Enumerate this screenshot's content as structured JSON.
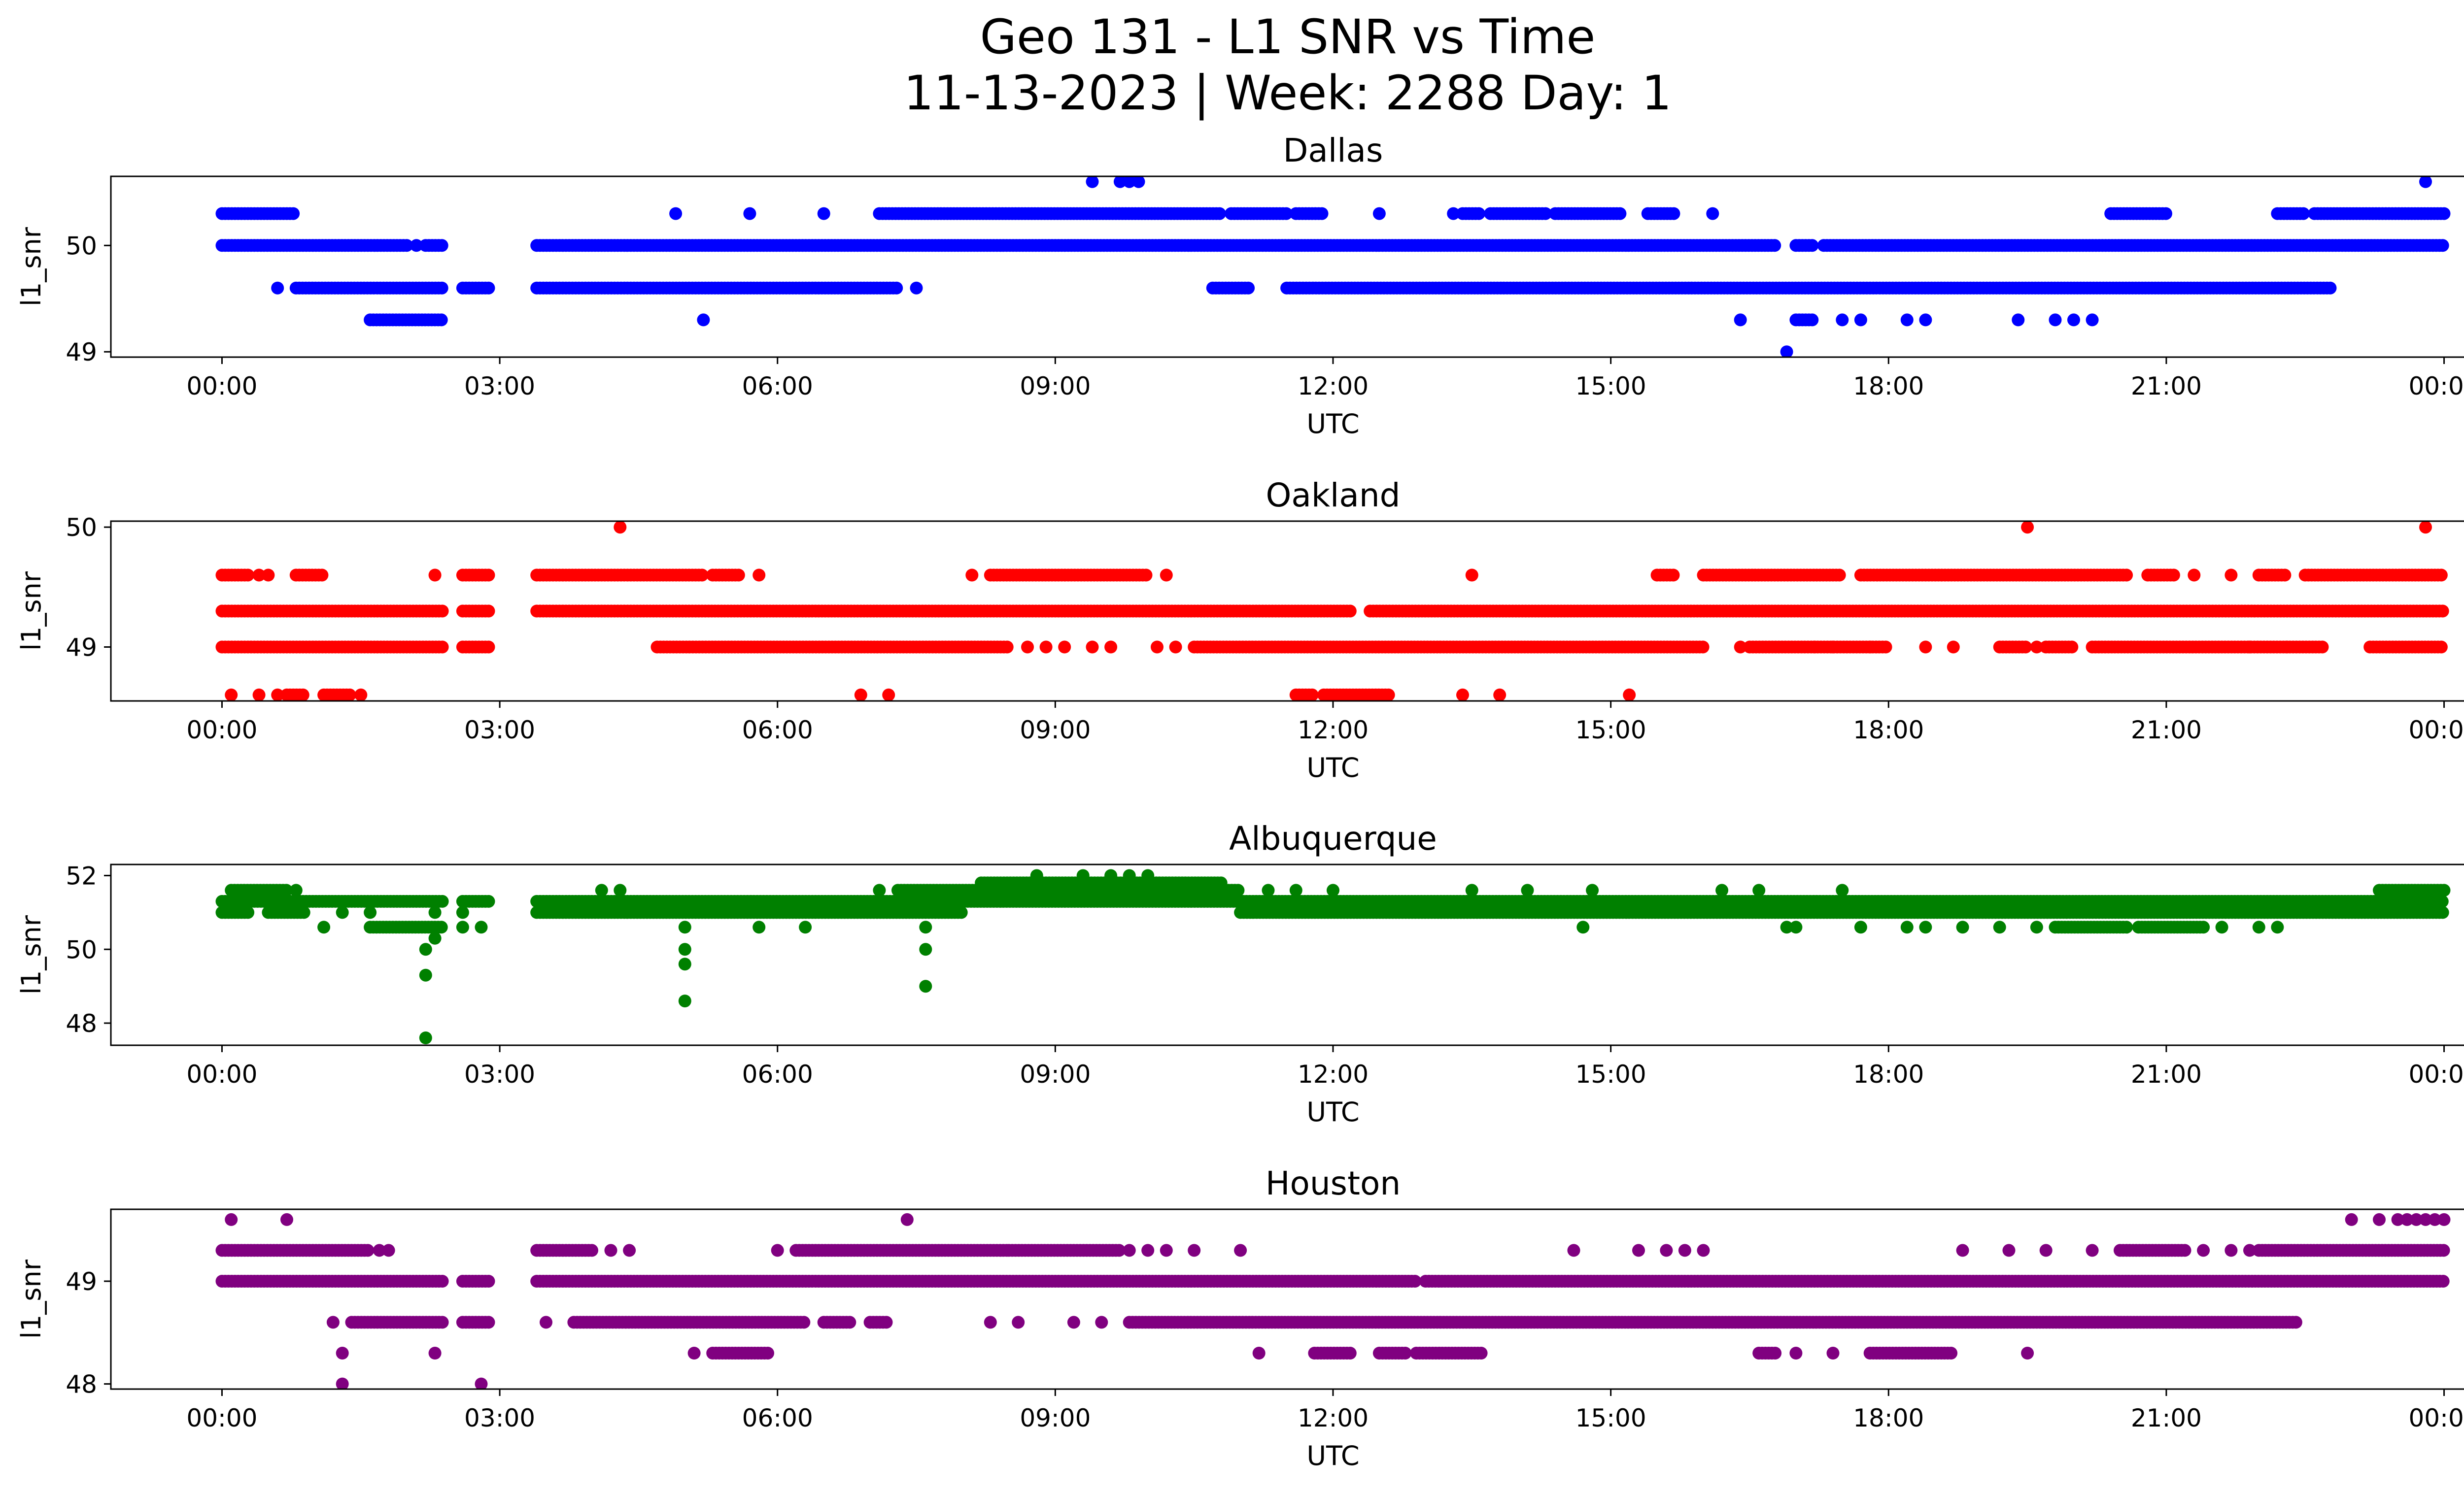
{
  "figure": {
    "title_line1": "Geo 131 - L1 SNR vs Time",
    "title_line2": "11-13-2023 | Week: 2288 Day: 1"
  },
  "chart_data": [
    {
      "type": "scatter",
      "title": "Dallas",
      "xlabel": "UTC",
      "ylabel": "l1_snr",
      "color": "#0000ff",
      "x_ticks": [
        "00:00",
        "03:00",
        "06:00",
        "09:00",
        "12:00",
        "15:00",
        "18:00",
        "21:00",
        "00:00"
      ],
      "x_range_hours": [
        -1.2,
        25.2
      ],
      "y_ticks": [
        49,
        50
      ],
      "ylim": [
        48.95,
        50.65
      ],
      "segments": [
        {
          "y": 50.3,
          "ranges": [
            [
              0,
              0.8
            ],
            [
              7.1,
              10.8
            ],
            [
              10.9,
              11.5
            ],
            [
              11.6,
              11.9
            ],
            [
              13.4,
              13.6
            ],
            [
              13.7,
              14.3
            ],
            [
              14.4,
              15.1
            ],
            [
              15.4,
              15.7
            ],
            [
              20.4,
              21.0
            ],
            [
              22.2,
              22.5
            ],
            [
              22.6,
              24.0
            ]
          ]
        },
        {
          "y": 50.3,
          "points": [
            4.9,
            5.7,
            6.5,
            12.5,
            13.3,
            16.1
          ]
        },
        {
          "y": 50.0,
          "ranges": [
            [
              0,
              2.0
            ],
            [
              2.2,
              2.4
            ],
            [
              3.4,
              16.8
            ],
            [
              17.0,
              17.2
            ],
            [
              17.3,
              24.0
            ]
          ]
        },
        {
          "y": 50.0,
          "points": [
            2.1
          ]
        },
        {
          "y": 49.6,
          "ranges": [
            [
              0.8,
              2.4
            ],
            [
              2.6,
              2.9
            ],
            [
              3.4,
              7.3
            ],
            [
              10.7,
              11.1
            ],
            [
              11.5,
              22.8
            ]
          ]
        },
        {
          "y": 49.6,
          "points": [
            0.6,
            7.5
          ]
        },
        {
          "y": 49.3,
          "ranges": [
            [
              1.6,
              2.4
            ],
            [
              17.0,
              17.2
            ]
          ]
        },
        {
          "y": 49.3,
          "points": [
            5.2,
            16.4,
            17.5,
            17.7,
            18.2,
            18.4,
            19.4,
            19.8,
            20.0,
            20.2
          ]
        },
        {
          "y": 49.0,
          "points": [
            16.9
          ]
        },
        {
          "y": 50.6,
          "points": [
            9.4,
            9.7,
            9.8,
            9.9,
            23.8
          ]
        }
      ]
    },
    {
      "type": "scatter",
      "title": "Oakland",
      "xlabel": "UTC",
      "ylabel": "l1_snr",
      "color": "#ff0000",
      "x_ticks": [
        "00:00",
        "03:00",
        "06:00",
        "09:00",
        "12:00",
        "15:00",
        "18:00",
        "21:00",
        "00:00"
      ],
      "x_range_hours": [
        -1.2,
        25.2
      ],
      "y_ticks": [
        49,
        50
      ],
      "ylim": [
        48.55,
        50.05
      ],
      "segments": [
        {
          "y": 49.6,
          "ranges": [
            [
              0,
              0.3
            ],
            [
              0.8,
              1.1
            ],
            [
              2.6,
              2.9
            ],
            [
              3.4,
              5.2
            ],
            [
              5.3,
              5.6
            ],
            [
              8.3,
              10.0
            ],
            [
              15.5,
              15.7
            ],
            [
              16.0,
              17.5
            ],
            [
              17.7,
              20.6
            ],
            [
              20.8,
              21.1
            ],
            [
              22.0,
              22.3
            ],
            [
              22.5,
              24.0
            ]
          ]
        },
        {
          "y": 49.6,
          "points": [
            0.4,
            0.5,
            2.3,
            5.8,
            8.1,
            10.2,
            13.5,
            21.3,
            21.7
          ]
        },
        {
          "y": 49.3,
          "ranges": [
            [
              0,
              2.4
            ],
            [
              2.6,
              2.9
            ],
            [
              3.4,
              12.2
            ],
            [
              12.4,
              24.0
            ]
          ]
        },
        {
          "y": 49.0,
          "ranges": [
            [
              0,
              2.4
            ],
            [
              2.6,
              2.9
            ],
            [
              4.7,
              8.5
            ],
            [
              10.5,
              16.0
            ],
            [
              16.5,
              18.0
            ],
            [
              19.2,
              19.5
            ],
            [
              19.7,
              20.0
            ],
            [
              20.2,
              22.7
            ],
            [
              23.2,
              24.0
            ]
          ]
        },
        {
          "y": 49.0,
          "points": [
            8.7,
            8.9,
            9.1,
            9.4,
            9.6,
            10.1,
            10.3,
            16.4,
            17.2,
            17.4,
            17.8,
            18.4,
            18.7,
            19.6,
            21.9,
            22.3
          ]
        },
        {
          "y": 48.6,
          "ranges": [
            [
              0.7,
              0.9
            ],
            [
              1.1,
              1.4
            ],
            [
              11.6,
              11.8
            ],
            [
              11.9,
              12.6
            ]
          ]
        },
        {
          "y": 48.6,
          "points": [
            0.1,
            0.4,
            0.6,
            1.5,
            6.9,
            7.2,
            13.4,
            13.8,
            15.2
          ]
        },
        {
          "y": 50.0,
          "points": [
            4.3,
            19.5,
            23.8
          ]
        }
      ]
    },
    {
      "type": "scatter",
      "title": "Albuquerque",
      "xlabel": "UTC",
      "ylabel": "l1_snr",
      "color": "#008000",
      "x_ticks": [
        "00:00",
        "03:00",
        "06:00",
        "09:00",
        "12:00",
        "15:00",
        "18:00",
        "21:00",
        "00:00"
      ],
      "x_range_hours": [
        -1.2,
        25.2
      ],
      "y_ticks": [
        48,
        50,
        52
      ],
      "ylim": [
        47.4,
        52.3
      ],
      "segments": [
        {
          "y": 51.3,
          "ranges": [
            [
              0,
              2.4
            ],
            [
              2.6,
              2.9
            ],
            [
              3.4,
              24.0
            ]
          ]
        },
        {
          "y": 51.0,
          "ranges": [
            [
              0,
              0.3
            ],
            [
              0.5,
              0.9
            ],
            [
              3.4,
              8.0
            ],
            [
              11.0,
              24.0
            ]
          ]
        },
        {
          "y": 51.0,
          "points": [
            1.3,
            1.6,
            2.3,
            2.6
          ]
        },
        {
          "y": 51.6,
          "ranges": [
            [
              0.1,
              0.7
            ],
            [
              7.3,
              11.0
            ],
            [
              23.3,
              24.0
            ]
          ]
        },
        {
          "y": 51.6,
          "points": [
            0.8,
            4.1,
            4.3,
            7.1,
            11.3,
            11.6,
            12.0,
            13.5,
            14.1,
            14.8,
            16.2,
            16.6,
            17.5
          ]
        },
        {
          "y": 51.8,
          "ranges": [
            [
              8.2,
              10.8
            ]
          ]
        },
        {
          "y": 52.0,
          "points": [
            8.8,
            9.3,
            9.6,
            9.8,
            10.0
          ]
        },
        {
          "y": 50.6,
          "ranges": [
            [
              1.6,
              2.4
            ],
            [
              19.8,
              20.6
            ],
            [
              20.7,
              21.4
            ]
          ]
        },
        {
          "y": 50.6,
          "points": [
            1.1,
            2.6,
            2.8,
            5.0,
            5.8,
            6.3,
            7.6,
            14.7,
            16.9,
            17.0,
            17.7,
            18.2,
            18.4,
            18.8,
            19.2,
            19.6,
            21.6,
            22.0,
            22.2
          ]
        },
        {
          "y": 50.3,
          "points": [
            2.3
          ]
        },
        {
          "y": 50.0,
          "points": [
            2.2,
            5.0,
            7.6
          ]
        },
        {
          "y": 49.6,
          "points": [
            5.0
          ]
        },
        {
          "y": 49.3,
          "points": [
            2.2
          ]
        },
        {
          "y": 49.0,
          "points": [
            7.6
          ]
        },
        {
          "y": 48.6,
          "points": [
            5.0
          ]
        },
        {
          "y": 47.6,
          "points": [
            2.2
          ]
        }
      ]
    },
    {
      "type": "scatter",
      "title": "Houston",
      "xlabel": "UTC",
      "ylabel": "l1_snr",
      "color": "#800080",
      "x_ticks": [
        "00:00",
        "03:00",
        "06:00",
        "09:00",
        "12:00",
        "15:00",
        "18:00",
        "21:00",
        "00:00"
      ],
      "x_range_hours": [
        -1.2,
        25.2
      ],
      "y_ticks": [
        48,
        49
      ],
      "ylim": [
        47.95,
        49.7
      ],
      "segments": [
        {
          "y": 49.3,
          "ranges": [
            [
              0,
              1.6
            ],
            [
              3.4,
              4.0
            ],
            [
              6.2,
              8.5
            ],
            [
              8.5,
              9.7
            ],
            [
              20.5,
              21.2
            ],
            [
              22.0,
              24.0
            ]
          ]
        },
        {
          "y": 49.3,
          "points": [
            1.7,
            1.8,
            4.2,
            4.4,
            6.0,
            9.8,
            10.0,
            10.2,
            10.5,
            11.0,
            14.6,
            15.3,
            15.6,
            15.8,
            16.0,
            18.8,
            19.3,
            19.7,
            20.2,
            21.4,
            21.7,
            21.9
          ]
        },
        {
          "y": 49.0,
          "ranges": [
            [
              0,
              2.4
            ],
            [
              2.6,
              2.9
            ],
            [
              3.4,
              12.9
            ],
            [
              13.0,
              24.0
            ]
          ]
        },
        {
          "y": 48.6,
          "ranges": [
            [
              1.4,
              2.4
            ],
            [
              2.6,
              2.9
            ],
            [
              3.8,
              6.3
            ],
            [
              6.5,
              6.8
            ],
            [
              7.0,
              7.2
            ],
            [
              9.8,
              22.4
            ]
          ]
        },
        {
          "y": 48.6,
          "points": [
            1.2,
            3.5,
            8.3,
            8.6,
            9.2,
            9.5
          ]
        },
        {
          "y": 48.3,
          "ranges": [
            [
              5.3,
              5.9
            ],
            [
              11.8,
              12.2
            ],
            [
              12.5,
              12.8
            ],
            [
              12.9,
              13.6
            ],
            [
              16.6,
              16.8
            ],
            [
              17.8,
              18.7
            ]
          ]
        },
        {
          "y": 48.3,
          "points": [
            1.3,
            2.3,
            5.1,
            11.2,
            17.0,
            17.4,
            19.5
          ]
        },
        {
          "y": 48.0,
          "points": [
            1.3,
            2.8
          ]
        },
        {
          "y": 49.6,
          "points": [
            0.1,
            0.7,
            7.4,
            23.0,
            23.3,
            23.5,
            23.6,
            23.7,
            23.8,
            23.9,
            24.0
          ]
        }
      ]
    }
  ]
}
